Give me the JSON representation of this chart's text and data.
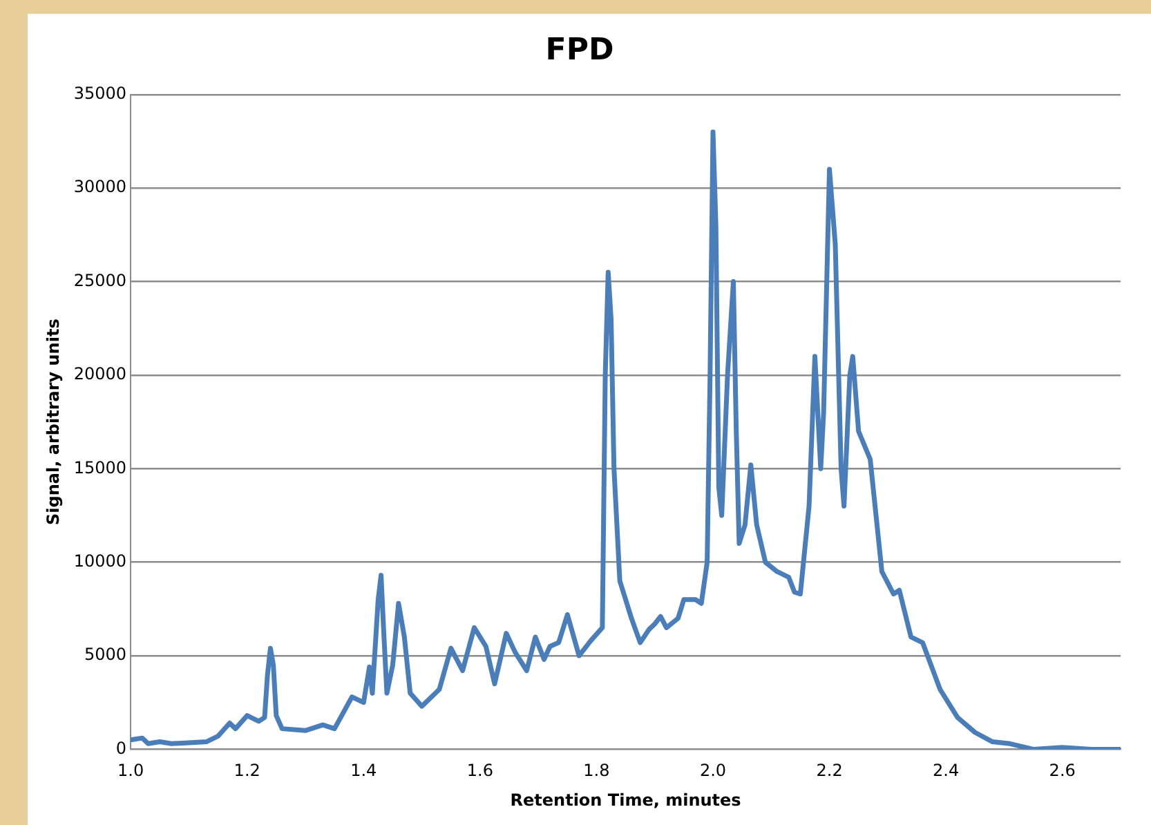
{
  "chart_data": {
    "type": "line",
    "title": "FPD",
    "xlabel": "Retention Time, minutes",
    "ylabel": "Signal, arbitrary units",
    "x": [
      1.0,
      1.02,
      1.03,
      1.05,
      1.07,
      1.1,
      1.13,
      1.15,
      1.17,
      1.18,
      1.2,
      1.22,
      1.23,
      1.235,
      1.24,
      1.245,
      1.25,
      1.26,
      1.3,
      1.33,
      1.35,
      1.38,
      1.4,
      1.41,
      1.415,
      1.425,
      1.43,
      1.435,
      1.44,
      1.45,
      1.46,
      1.47,
      1.48,
      1.5,
      1.53,
      1.55,
      1.57,
      1.59,
      1.61,
      1.625,
      1.645,
      1.66,
      1.68,
      1.695,
      1.71,
      1.72,
      1.735,
      1.75,
      1.77,
      1.79,
      1.81,
      1.815,
      1.82,
      1.825,
      1.83,
      1.84,
      1.86,
      1.875,
      1.89,
      1.9,
      1.91,
      1.92,
      1.94,
      1.95,
      1.97,
      1.98,
      1.99,
      1.995,
      2.0,
      2.005,
      2.01,
      2.015,
      2.025,
      2.035,
      2.04,
      2.045,
      2.055,
      2.065,
      2.075,
      2.09,
      2.11,
      2.13,
      2.14,
      2.15,
      2.165,
      2.175,
      2.185,
      2.19,
      2.2,
      2.21,
      2.22,
      2.225,
      2.235,
      2.24,
      2.25,
      2.27,
      2.29,
      2.31,
      2.32,
      2.34,
      2.36,
      2.39,
      2.42,
      2.45,
      2.48,
      2.51,
      2.55,
      2.6,
      2.65,
      2.7
    ],
    "series": [
      {
        "color": "#4a7ebb",
        "values": [
          500,
          600,
          300,
          400,
          300,
          350,
          400,
          700,
          1400,
          1100,
          1800,
          1500,
          1700,
          4000,
          5400,
          4500,
          1800,
          1100,
          1000,
          1300,
          1100,
          2800,
          2500,
          4400,
          3000,
          8000,
          9300,
          6000,
          3000,
          4500,
          7800,
          6000,
          3000,
          2300,
          3200,
          5400,
          4200,
          6500,
          5500,
          3500,
          6200,
          5200,
          4200,
          6000,
          4800,
          5500,
          5700,
          7200,
          5000,
          5800,
          6500,
          20000,
          25500,
          23000,
          15000,
          9000,
          7000,
          5700,
          6400,
          6700,
          7100,
          6500,
          7000,
          8000,
          8000,
          7800,
          10000,
          20000,
          33000,
          28000,
          14000,
          12500,
          20000,
          25000,
          17000,
          11000,
          12000,
          15200,
          12000,
          10000,
          9500,
          9200,
          8400,
          8300,
          13000,
          21000,
          15000,
          18000,
          31000,
          27000,
          15000,
          13000,
          20000,
          21000,
          17000,
          15500,
          9500,
          8300,
          8500,
          6000,
          5700,
          3200,
          1700,
          900,
          400,
          300,
          0,
          100,
          0,
          0
        ]
      }
    ],
    "xlim": [
      1.0,
      2.7
    ],
    "xticks": [
      {
        "value": 1.0,
        "label": "1.0"
      },
      {
        "value": 1.2,
        "label": "1.2"
      },
      {
        "value": 1.4,
        "label": "1.4"
      },
      {
        "value": 1.6,
        "label": "1.6"
      },
      {
        "value": 1.8,
        "label": "1.8"
      },
      {
        "value": 2.0,
        "label": "2.0"
      },
      {
        "value": 2.2,
        "label": "2.2"
      },
      {
        "value": 2.4,
        "label": "2.4"
      },
      {
        "value": 2.6,
        "label": "2.6"
      }
    ],
    "ylim": [
      0,
      35000
    ],
    "yticks": [
      0,
      5000,
      10000,
      15000,
      20000,
      25000,
      30000,
      35000
    ],
    "grid": "y",
    "legend": false,
    "marker": "none",
    "line_style": "solid"
  }
}
